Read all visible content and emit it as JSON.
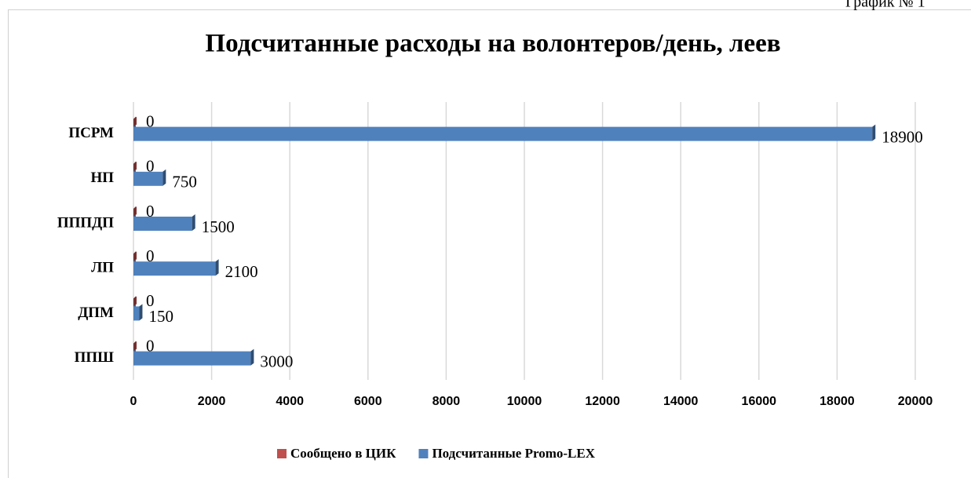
{
  "corner_label": "График № 1",
  "chart_data": {
    "type": "hbar",
    "title": "Подсчитанные расходы на волонтеров/день, леев",
    "categories": [
      "ПСРМ",
      "НП",
      "ПППДП",
      "ЛП",
      "ДПМ",
      "ППШ"
    ],
    "series": [
      {
        "name": "Сообщено в ЦИК",
        "color": "#c0504d",
        "values": [
          0,
          0,
          0,
          0,
          0,
          0
        ]
      },
      {
        "name": "Подсчитанные Promo-LEX",
        "color": "#4f81bd",
        "values": [
          18900,
          750,
          1500,
          2100,
          150,
          3000
        ]
      }
    ],
    "xlim": [
      0,
      20000
    ],
    "xticks": [
      0,
      2000,
      4000,
      6000,
      8000,
      10000,
      12000,
      14000,
      16000,
      18000,
      20000
    ],
    "grid": true,
    "legend": "bottom"
  }
}
